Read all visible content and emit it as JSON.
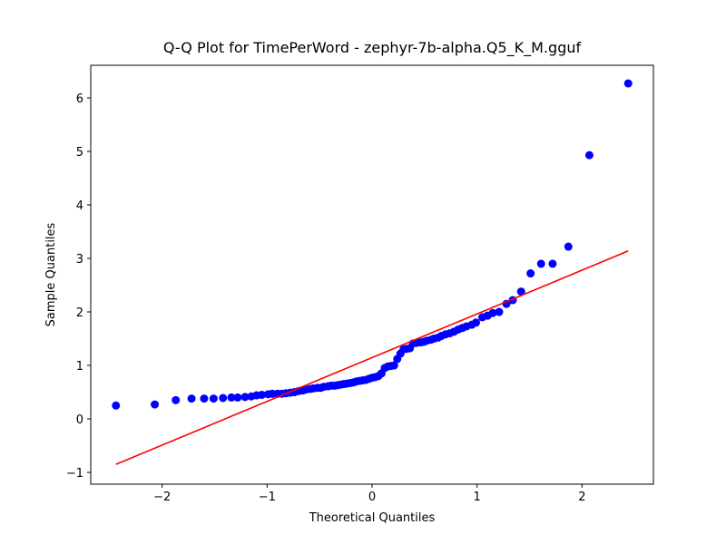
{
  "chart_data": {
    "type": "scatter",
    "title": "Q-Q Plot for TimePerWord - zephyr-7b-alpha.Q5_K_M.gguf",
    "x_label": "Theoretical Quantiles",
    "y_label": "Sample Quantiles",
    "xlim": [
      -2.68,
      2.68
    ],
    "ylim": [
      -1.22,
      6.61
    ],
    "xticks": [
      {
        "value": -2,
        "label": "−2"
      },
      {
        "value": -1,
        "label": "−1"
      },
      0,
      1,
      2
    ],
    "yticks": [
      {
        "value": -1,
        "label": "−1"
      },
      0,
      1,
      2,
      3,
      4,
      5,
      6
    ],
    "series": [
      {
        "color": "#0000ff",
        "x": [
          -2.44,
          -2.07,
          -1.87,
          -1.72,
          -1.6,
          -1.51,
          -1.42,
          -1.34,
          -1.28,
          -1.21,
          -1.15,
          -1.1,
          -1.05,
          -0.99,
          -0.95,
          -0.9,
          -0.86,
          -0.82,
          -0.78,
          -0.74,
          -0.7,
          -0.66,
          -0.63,
          -0.59,
          -0.56,
          -0.52,
          -0.49,
          -0.46,
          -0.42,
          -0.39,
          -0.36,
          -0.33,
          -0.3,
          -0.27,
          -0.24,
          -0.21,
          -0.18,
          -0.15,
          -0.12,
          -0.09,
          -0.06,
          -0.03,
          0,
          0.03,
          0.06,
          0.09,
          0.12,
          0.15,
          0.18,
          0.21,
          0.24,
          0.27,
          0.3,
          0.33,
          0.36,
          0.39,
          0.42,
          0.46,
          0.49,
          0.52,
          0.56,
          0.59,
          0.63,
          0.66,
          0.7,
          0.74,
          0.78,
          0.82,
          0.86,
          0.9,
          0.95,
          0.99,
          1.05,
          1.1,
          1.15,
          1.21,
          1.28,
          1.34,
          1.42,
          1.51,
          1.61,
          1.72,
          1.87,
          2.07,
          2.44
        ],
        "values": [
          0.25,
          0.27,
          0.35,
          0.38,
          0.38,
          0.38,
          0.39,
          0.4,
          0.4,
          0.41,
          0.42,
          0.44,
          0.45,
          0.46,
          0.47,
          0.47,
          0.47,
          0.48,
          0.49,
          0.5,
          0.52,
          0.53,
          0.55,
          0.56,
          0.57,
          0.58,
          0.58,
          0.6,
          0.61,
          0.62,
          0.62,
          0.63,
          0.64,
          0.65,
          0.66,
          0.67,
          0.68,
          0.7,
          0.71,
          0.72,
          0.73,
          0.75,
          0.77,
          0.78,
          0.8,
          0.85,
          0.95,
          0.98,
          0.99,
          1.0,
          1.12,
          1.22,
          1.3,
          1.31,
          1.32,
          1.41,
          1.42,
          1.43,
          1.44,
          1.46,
          1.48,
          1.5,
          1.52,
          1.55,
          1.58,
          1.6,
          1.63,
          1.67,
          1.7,
          1.73,
          1.76,
          1.8,
          1.9,
          1.93,
          1.98,
          2.0,
          2.15,
          2.22,
          2.38,
          2.72,
          2.9,
          2.9,
          3.22,
          4.93,
          6.27
        ]
      },
      {
        "type": "line",
        "color": "#ff0000",
        "x": [
          -2.44,
          2.44
        ],
        "values": [
          -0.85,
          3.14
        ]
      }
    ]
  }
}
